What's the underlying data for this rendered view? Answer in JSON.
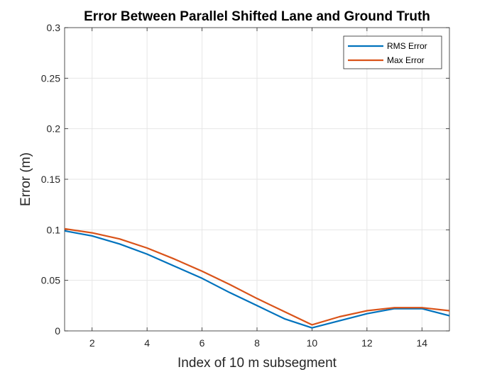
{
  "chart_data": {
    "type": "line",
    "title": "Error Between Parallel Shifted Lane and Ground Truth",
    "xlabel": "Index of 10 m subsegment",
    "ylabel": "Error (m)",
    "xlim": [
      1,
      15
    ],
    "ylim": [
      0,
      0.3
    ],
    "xticks": [
      2,
      4,
      6,
      8,
      10,
      12,
      14
    ],
    "yticks": [
      0,
      0.05,
      0.1,
      0.15,
      0.2,
      0.25,
      0.3
    ],
    "ytick_labels": [
      "0",
      "0.05",
      "0.1",
      "0.15",
      "0.2",
      "0.25",
      "0.3"
    ],
    "grid": true,
    "legend_position": "top-right",
    "x": [
      1,
      2,
      3,
      4,
      5,
      6,
      7,
      8,
      9,
      10,
      11,
      12,
      13,
      14,
      15
    ],
    "series": [
      {
        "name": "RMS Error",
        "color": "#0072BD",
        "values": [
          0.099,
          0.094,
          0.086,
          0.076,
          0.064,
          0.052,
          0.038,
          0.025,
          0.012,
          0.003,
          0.01,
          0.017,
          0.022,
          0.022,
          0.015
        ]
      },
      {
        "name": "Max Error",
        "color": "#D95319",
        "values": [
          0.101,
          0.097,
          0.091,
          0.082,
          0.071,
          0.059,
          0.046,
          0.032,
          0.019,
          0.006,
          0.014,
          0.02,
          0.023,
          0.023,
          0.02
        ]
      }
    ]
  }
}
